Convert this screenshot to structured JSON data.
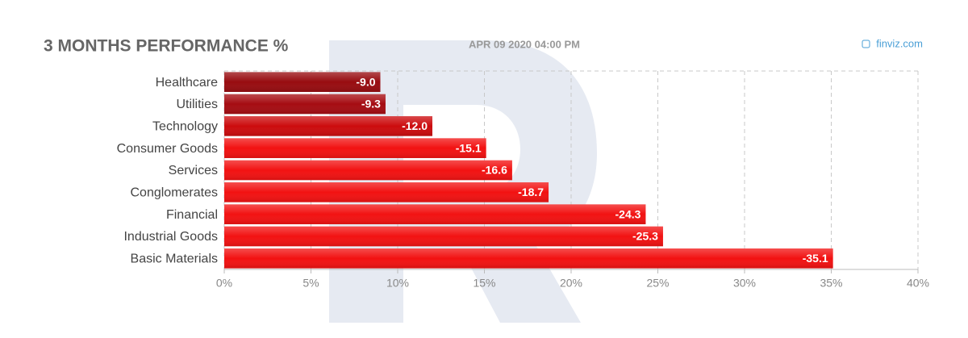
{
  "chart_data": {
    "type": "hbar",
    "title": "3 MONTHS PERFORMANCE %",
    "subtitle": "APR 09 2020 04:00 PM",
    "source": "finviz.com",
    "categories": [
      "Healthcare",
      "Utilities",
      "Technology",
      "Consumer Goods",
      "Services",
      "Conglomerates",
      "Financial",
      "Industrial Goods",
      "Basic Materials"
    ],
    "values": [
      -9.0,
      -9.3,
      -12.0,
      -15.1,
      -16.6,
      -18.7,
      -24.3,
      -25.3,
      -35.1
    ],
    "value_labels": [
      "-9.0",
      "-9.3",
      "-12.0",
      "-15.1",
      "-16.6",
      "-18.7",
      "-24.3",
      "-25.3",
      "-35.1"
    ],
    "colors": [
      "#980c10",
      "#a60c12",
      "#cc0c0e",
      "#f21212",
      "#f21212",
      "#f21212",
      "#f21212",
      "#f21212",
      "#f21212"
    ],
    "xlim": [
      0,
      40
    ],
    "xticks": [
      {
        "value": 0,
        "label": "0%"
      },
      {
        "value": 5,
        "label": "5%"
      },
      {
        "value": 10,
        "label": "10%"
      },
      {
        "value": 15,
        "label": "15%"
      },
      {
        "value": 20,
        "label": "20%"
      },
      {
        "value": 25,
        "label": "25%"
      },
      {
        "value": 30,
        "label": "30%"
      },
      {
        "value": 35,
        "label": "35%"
      },
      {
        "value": 40,
        "label": "40%"
      }
    ],
    "grid": true
  }
}
